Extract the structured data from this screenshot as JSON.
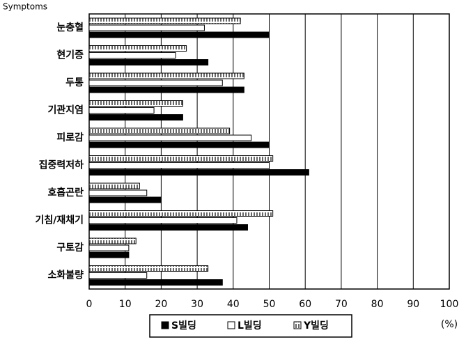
{
  "chart_data": {
    "type": "bar",
    "orientation": "horizontal",
    "y_label": "Symptoms",
    "x_label": "(%)",
    "categories": [
      "눈충혈",
      "현기증",
      "두통",
      "기관지염",
      "피로감",
      "집중력저하",
      "호흡곤란",
      "기침/재채기",
      "구토감",
      "소화불량"
    ],
    "series": [
      {
        "name": "S빌딩",
        "color": "#000000",
        "values": [
          50,
          33,
          43,
          26,
          50,
          61,
          20,
          44,
          11,
          37
        ]
      },
      {
        "name": "L빌딩",
        "color": "#ffffff",
        "values": [
          32,
          24,
          37,
          18,
          45,
          50,
          16,
          41,
          11,
          16
        ]
      },
      {
        "name": "Y빌딩",
        "color": "#666666",
        "pattern": "vertical-stripes",
        "values": [
          42,
          27,
          43,
          26,
          39,
          51,
          14,
          51,
          13,
          33
        ]
      }
    ],
    "xlim": [
      0,
      100
    ],
    "xticks": [
      0,
      10,
      20,
      30,
      40,
      50,
      60,
      70,
      80,
      90,
      100
    ],
    "grid": true
  }
}
